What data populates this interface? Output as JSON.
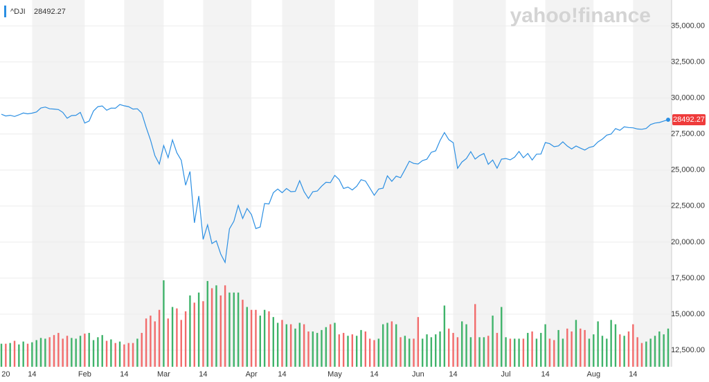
{
  "chart_data": {
    "type": "line",
    "watermark": "yahoo!finance",
    "categories": [
      null,
      "20",
      null,
      null,
      null,
      null,
      null,
      "14",
      null,
      null,
      null,
      null,
      null,
      null,
      null,
      null,
      null,
      null,
      null,
      "Feb",
      null,
      null,
      null,
      null,
      null,
      null,
      null,
      null,
      "14",
      null,
      null,
      null,
      null,
      null,
      null,
      null,
      null,
      "Mar",
      null,
      null,
      null,
      null,
      null,
      null,
      null,
      null,
      "14",
      null,
      null,
      null,
      null,
      null,
      null,
      null,
      null,
      null,
      null,
      "Apr",
      null,
      null,
      null,
      null,
      null,
      null,
      "14",
      null,
      null,
      null,
      null,
      null,
      null,
      null,
      null,
      null,
      null,
      null,
      "May",
      null,
      null,
      null,
      null,
      null,
      null,
      null,
      null,
      "14",
      null,
      null,
      null,
      null,
      null,
      null,
      null,
      null,
      null,
      "Jun",
      null,
      null,
      null,
      null,
      null,
      null,
      null,
      "14",
      null,
      null,
      null,
      null,
      null,
      null,
      null,
      null,
      null,
      null,
      null,
      "Jul",
      null,
      null,
      null,
      null,
      null,
      null,
      null,
      null,
      "14",
      null,
      null,
      null,
      null,
      null,
      null,
      null,
      null,
      null,
      null,
      "Aug",
      null,
      null,
      null,
      null,
      null,
      null,
      null,
      null,
      "14",
      null,
      null,
      null,
      null,
      null,
      null,
      null,
      null
    ],
    "series": [
      {
        "name": "^DJI",
        "color": "#2b8fe3",
        "values": [
          28870,
          28750,
          28800,
          28720,
          28830,
          28960,
          28900,
          28950,
          29030,
          29310,
          29370,
          29250,
          29230,
          29200,
          29000,
          28600,
          28780,
          28800,
          29000,
          28260,
          28400,
          29100,
          29400,
          29450,
          29150,
          29300,
          29290,
          29550,
          29460,
          29400,
          29230,
          29250,
          28950,
          27960,
          27080,
          26000,
          25420,
          26700,
          25860,
          27090,
          26200,
          25680,
          23950,
          24900,
          21340,
          23200,
          20190,
          21200,
          19900,
          20090,
          19170,
          18590,
          20920,
          21450,
          22550,
          21640,
          22330,
          21920,
          20940,
          21050,
          22680,
          22650,
          23430,
          23680,
          23430,
          23720,
          23500,
          23520,
          24260,
          23500,
          23030,
          23500,
          23540,
          23880,
          24150,
          24130,
          24630,
          24340,
          23720,
          23820,
          23620,
          23880,
          24330,
          24240,
          23750,
          23250,
          23680,
          23740,
          24600,
          24220,
          24580,
          24470,
          25030,
          25610,
          25460,
          25420,
          25660,
          25750,
          26230,
          26330,
          27050,
          27600,
          27110,
          26900,
          25120,
          25560,
          25800,
          26280,
          25760,
          26000,
          26150,
          25400,
          25700,
          25130,
          25760,
          25800,
          25710,
          25900,
          26290,
          25850,
          26150,
          25700,
          26100,
          26110,
          26910,
          26830,
          26620,
          26680,
          26960,
          26670,
          26460,
          26670,
          26520,
          26390,
          26570,
          26650,
          26950,
          27150,
          27420,
          27500,
          27880,
          27760,
          28000,
          27950,
          27930,
          27850,
          27830,
          27890,
          28160,
          28260,
          28300,
          28400,
          28492.27
        ]
      },
      {
        "type": "bar",
        "up_color": "#3fb36a",
        "down_color": "#f26b6b",
        "values": [
          12950,
          12950,
          13000,
          13150,
          12900,
          13100,
          12950,
          13050,
          13200,
          13350,
          13300,
          13400,
          13550,
          13700,
          13300,
          13500,
          13350,
          13300,
          13500,
          13650,
          13700,
          13200,
          13400,
          13550,
          13150,
          13250,
          13000,
          13100,
          12900,
          13000,
          13000,
          13300,
          13700,
          14700,
          14900,
          14500,
          15300,
          17350,
          14700,
          15500,
          15400,
          14600,
          15200,
          16300,
          15800,
          16500,
          15900,
          17300,
          16800,
          17000,
          16300,
          17000,
          16500,
          16500,
          16500,
          16000,
          15500,
          15300,
          15300,
          14900,
          15300,
          15200,
          14800,
          14400,
          14600,
          14300,
          14300,
          14000,
          14400,
          14300,
          13800,
          13800,
          13700,
          13900,
          14100,
          14300,
          14400,
          13600,
          13700,
          13500,
          13600,
          13500,
          13900,
          13800,
          13300,
          13200,
          13300,
          14300,
          14400,
          14500,
          14300,
          13400,
          13500,
          13300,
          13300,
          14800,
          13300,
          13600,
          13400,
          13600,
          13800,
          15600,
          14000,
          13700,
          13400,
          14500,
          14300,
          13400,
          15700,
          13400,
          13400,
          13500,
          14900,
          13700,
          15500,
          13400,
          13300,
          13300,
          13300,
          13300,
          13700,
          13800,
          13300,
          13700,
          14300,
          13300,
          13200,
          13900,
          13300,
          14000,
          13800,
          14600,
          14000,
          13900,
          13300,
          13600,
          14500,
          13500,
          13300,
          14600,
          14300,
          13600,
          13500,
          13800,
          14300,
          13400,
          13000,
          13100,
          13300,
          13500,
          13800,
          13600,
          14000
        ]
      }
    ],
    "ylim": [
      11350,
      36800
    ],
    "yticks": [
      {
        "value": 12500,
        "label": "12,500.00"
      },
      {
        "value": 15000,
        "label": "15,000.00"
      },
      {
        "value": 17500,
        "label": "17,500.00"
      },
      {
        "value": 20000,
        "label": "20,000.00"
      },
      {
        "value": 22500,
        "label": "22,500.00"
      },
      {
        "value": 25000,
        "label": "25,000.00"
      },
      {
        "value": 27500,
        "label": "27,500.00"
      },
      {
        "value": 30000,
        "label": "30,000.00"
      },
      {
        "value": 32500,
        "label": "32,500.00"
      },
      {
        "value": 35000,
        "label": "35,000.00"
      }
    ],
    "grid": true,
    "band_color": "#f3f3f3",
    "badge_color": "#ef3b3b"
  }
}
